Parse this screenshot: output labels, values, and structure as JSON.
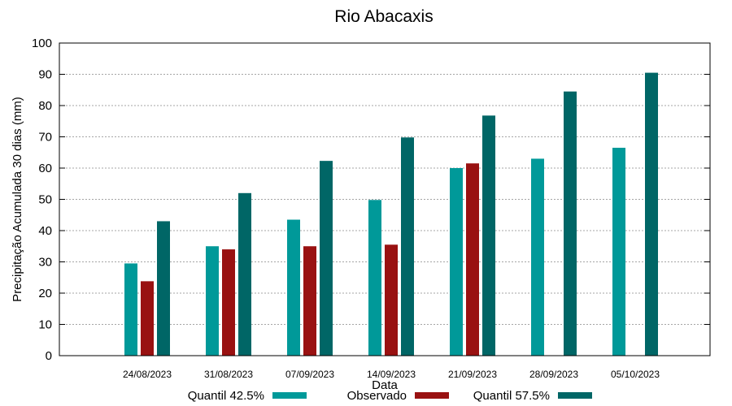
{
  "chart_data": {
    "type": "bar",
    "title": "Rio Abacaxis",
    "xlabel": "Data",
    "ylabel": "Precipitação Acumulada 30 dias (mm)",
    "ylim": [
      0,
      100
    ],
    "yticks": [
      0,
      10,
      20,
      30,
      40,
      50,
      60,
      70,
      80,
      90,
      100
    ],
    "grid": true,
    "legend_position": "bottom",
    "categories": [
      "24/08/2023",
      "31/08/2023",
      "07/09/2023",
      "14/09/2023",
      "21/09/2023",
      "28/09/2023",
      "05/10/2023"
    ],
    "series": [
      {
        "name": "Quantil 42.5%",
        "color": "#009999",
        "values": [
          29.5,
          35,
          43.5,
          49.8,
          60,
          63,
          66.5
        ]
      },
      {
        "name": "Observado",
        "color": "#991111",
        "values": [
          23.8,
          34,
          35,
          35.5,
          61.5,
          null,
          null
        ]
      },
      {
        "name": "Quantil 57.5%",
        "color": "#006666",
        "values": [
          43,
          52,
          62.3,
          69.8,
          76.8,
          84.5,
          90.5
        ]
      }
    ]
  }
}
